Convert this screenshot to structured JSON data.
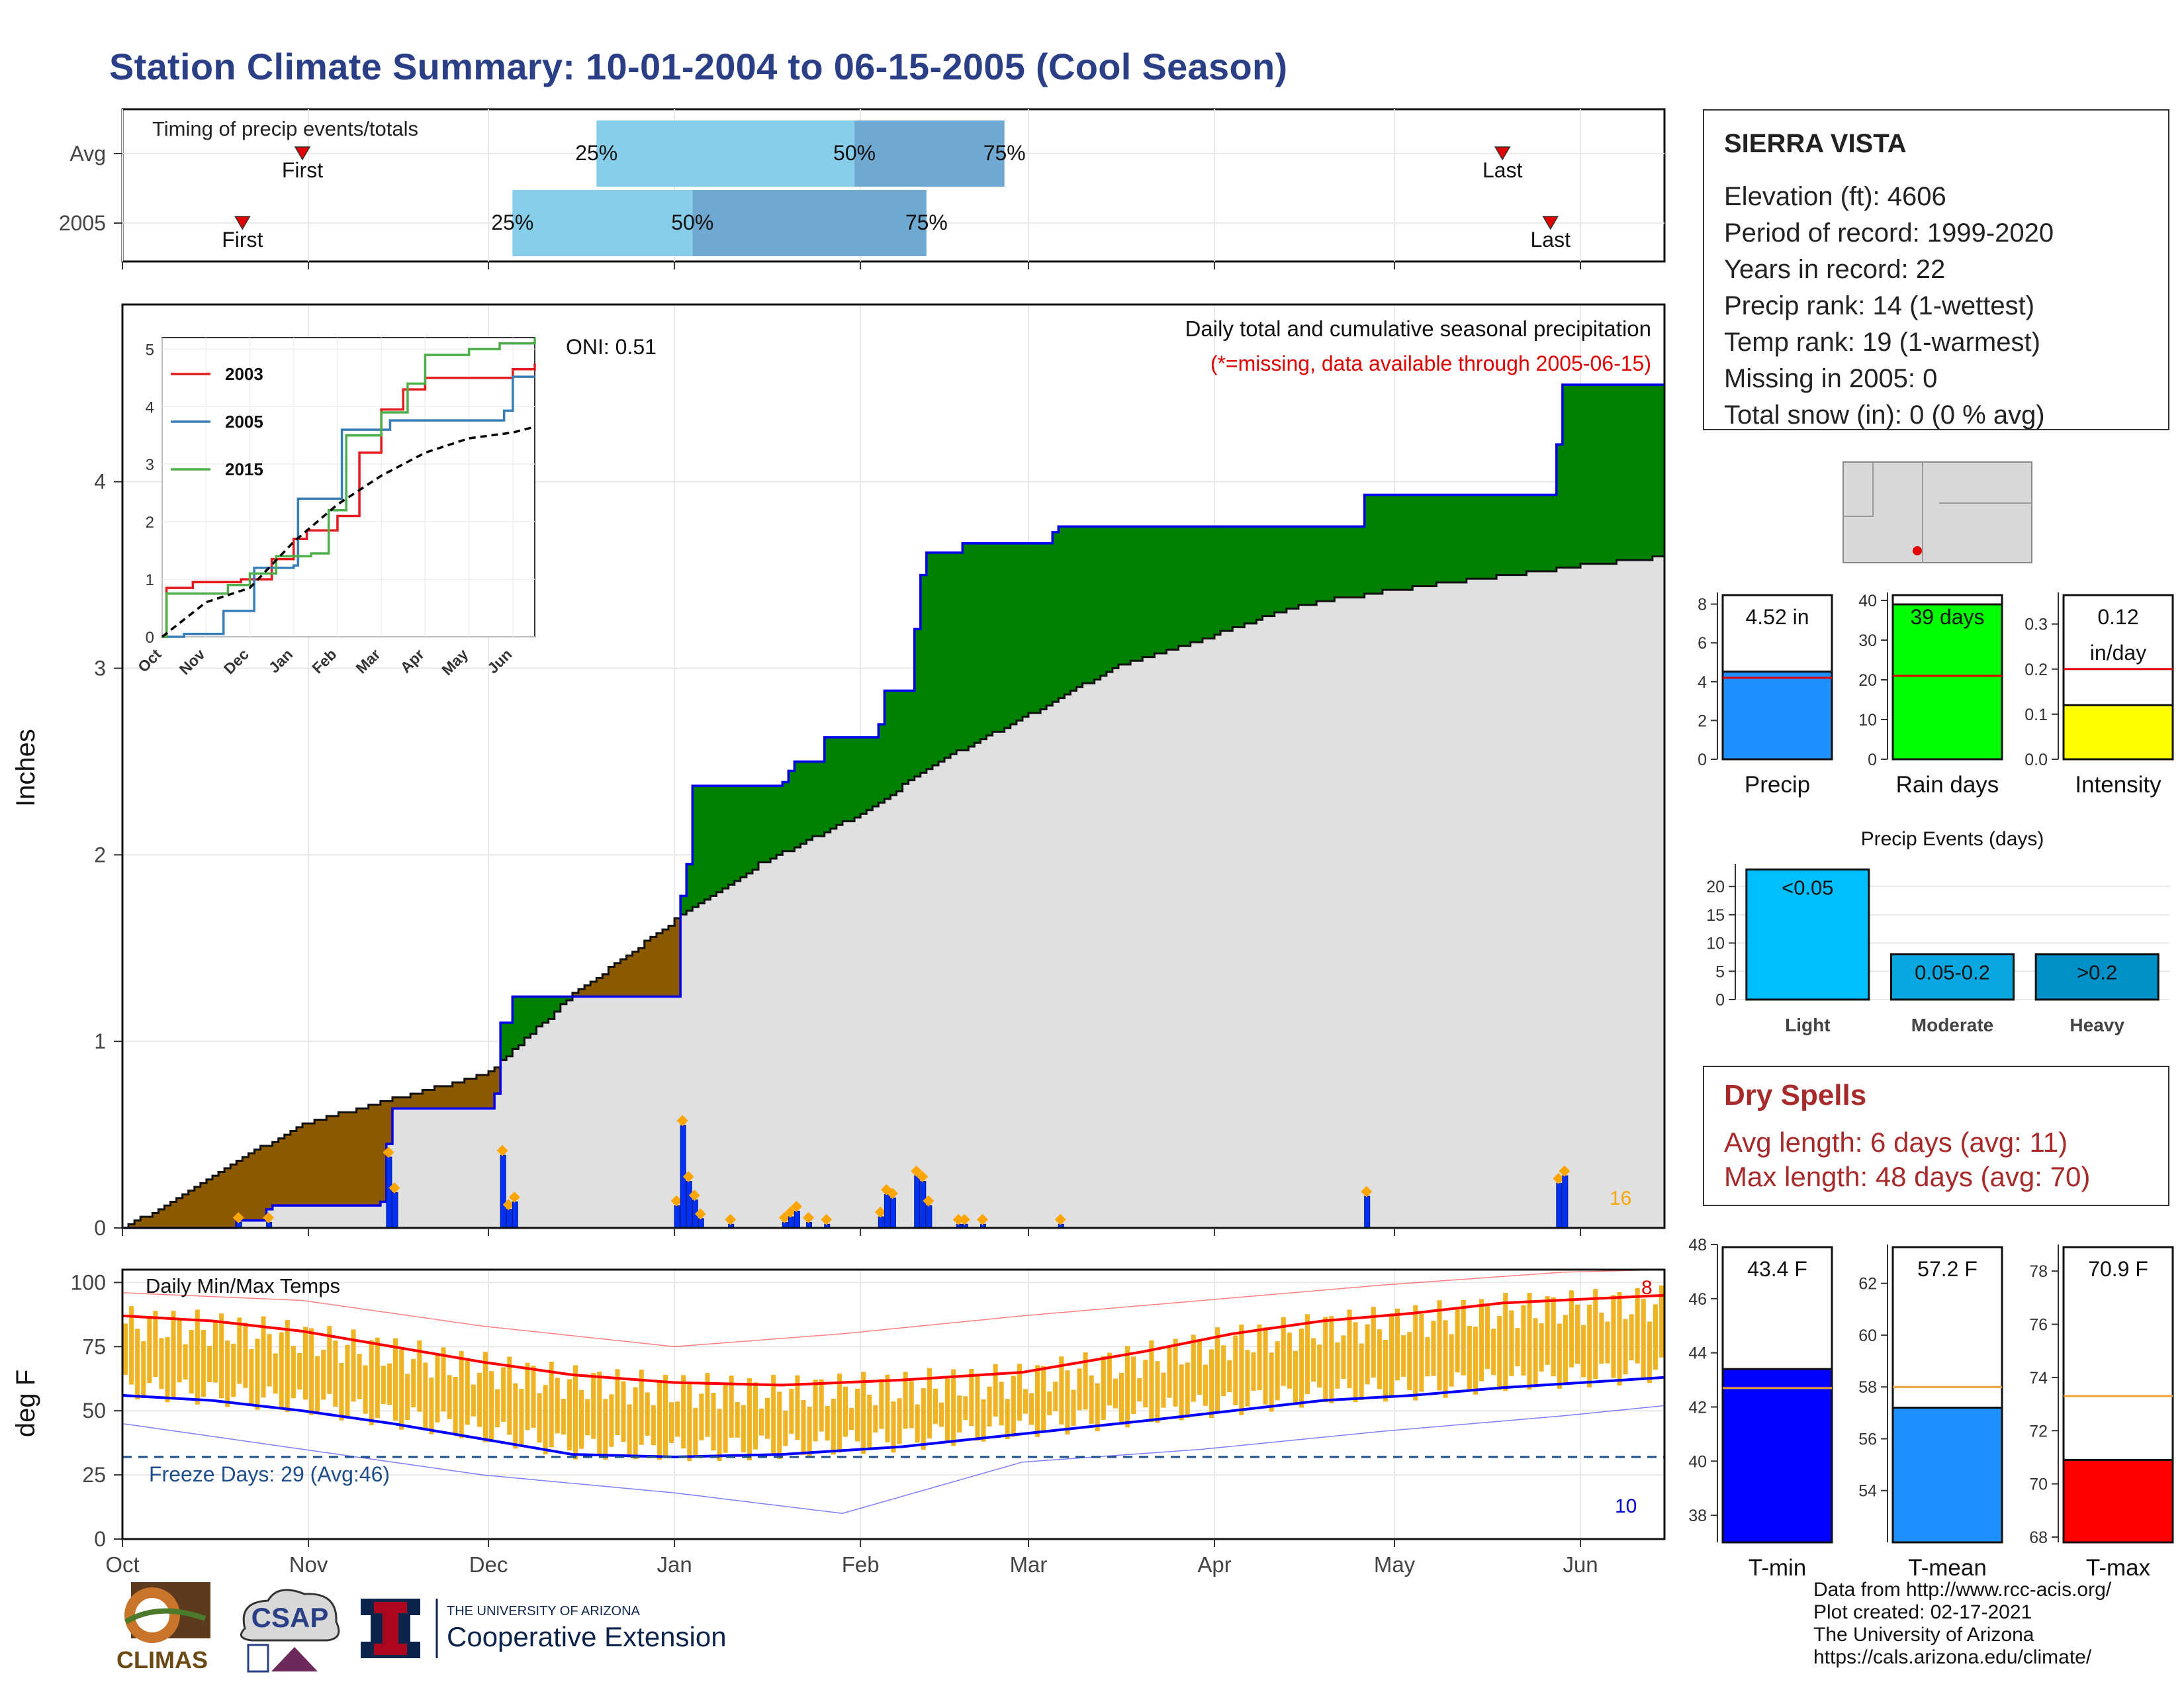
{
  "title": "Station Climate Summary: 10-01-2004 to 06-15-2005 (Cool Season)",
  "station": {
    "name": "SIERRA VISTA",
    "lines": [
      "Elevation (ft): 4606",
      "Period of record: 1999-2020",
      "Years in record: 22",
      "Precip rank: 14 (1-wettest)",
      "Temp rank: 19 (1-warmest)",
      "Missing in 2005: 0",
      "Total snow (in): 0 (0 % avg)"
    ]
  },
  "dry_spells": {
    "title": "Dry Spells",
    "avg_line": "Avg length: 6 days (avg: 11)",
    "max_line": "Max length: 48 days (avg: 70)"
  },
  "footer": [
    "Data from http://www.rcc-acis.org/",
    "Plot created: 02-17-2021",
    "The University of Arizona",
    "https://cals.arizona.edu/climate/"
  ],
  "logos": {
    "climas": "CLIMAS",
    "csap": "CSAP",
    "ua_small": "THE UNIVERSITY OF ARIZONA",
    "ua_big": "Cooperative Extension"
  },
  "colors": {
    "title": "#2b3f87",
    "above_avg": "#008000",
    "below_avg": "#8b5a00",
    "avg_fill": "#e0e0e0",
    "observed_line": "#0000ee",
    "daily_bar": "#0030ff",
    "marker": "#ffa500",
    "q_light": "#87ceeb",
    "q_dark": "#6fa8d0",
    "tmax": "#ff0000",
    "tmin": "#0000ff",
    "range_bar": "#f0b323"
  },
  "chart_data": [
    {
      "id": "timing",
      "type": "range",
      "title": "Timing of precip events/totals",
      "rows": [
        {
          "label": "Avg",
          "first": "2004-10-31",
          "p25": "2004-12-19",
          "p50": "2005-01-31",
          "p75": "2005-02-25",
          "last": "2005-05-19"
        },
        {
          "label": "2005",
          "first": "2004-10-21",
          "p25": "2004-12-05",
          "p50": "2005-01-04",
          "p75": "2005-02-12",
          "last": "2005-05-27"
        }
      ],
      "marker_labels": {
        "first": "First",
        "last": "Last",
        "p25": "25%",
        "p50": "50%",
        "p75": "75%"
      }
    },
    {
      "id": "cumulative_precip",
      "type": "area",
      "title": "Daily total and cumulative seasonal precipitation",
      "subtitle": "(*=missing, data available through 2005-06-15)",
      "annotation": "ONI: 0.51",
      "ylabel": "Inches",
      "ylim": [
        0,
        4.95
      ],
      "yticks": [
        0,
        1,
        2,
        3,
        4
      ],
      "x_months": [
        "Oct",
        "Nov",
        "Dec",
        "Jan",
        "Feb",
        "Mar",
        "Apr",
        "May",
        "Jun"
      ],
      "observed_cumulative": [
        {
          "x": "2004-10-01",
          "y": 0.0
        },
        {
          "x": "2004-10-20",
          "y": 0.04
        },
        {
          "x": "2004-10-25",
          "y": 0.1
        },
        {
          "x": "2004-10-26",
          "y": 0.12
        },
        {
          "x": "2004-11-13",
          "y": 0.14
        },
        {
          "x": "2004-11-14",
          "y": 0.45
        },
        {
          "x": "2004-11-15",
          "y": 0.64
        },
        {
          "x": "2004-11-26",
          "y": 0.64
        },
        {
          "x": "2004-12-02",
          "y": 0.72
        },
        {
          "x": "2004-12-03",
          "y": 1.1
        },
        {
          "x": "2004-12-05",
          "y": 1.24
        },
        {
          "x": "2005-01-01",
          "y": 1.24
        },
        {
          "x": "2005-01-02",
          "y": 1.78
        },
        {
          "x": "2005-01-03",
          "y": 1.95
        },
        {
          "x": "2005-01-04",
          "y": 2.37
        },
        {
          "x": "2005-01-10",
          "y": 2.37
        },
        {
          "x": "2005-01-19",
          "y": 2.39
        },
        {
          "x": "2005-01-20",
          "y": 2.45
        },
        {
          "x": "2005-01-21",
          "y": 2.5
        },
        {
          "x": "2005-01-26",
          "y": 2.63
        },
        {
          "x": "2005-02-04",
          "y": 2.7
        },
        {
          "x": "2005-02-05",
          "y": 2.88
        },
        {
          "x": "2005-02-10",
          "y": 3.21
        },
        {
          "x": "2005-02-11",
          "y": 3.5
        },
        {
          "x": "2005-02-12",
          "y": 3.62
        },
        {
          "x": "2005-02-17",
          "y": 3.62
        },
        {
          "x": "2005-02-18",
          "y": 3.67
        },
        {
          "x": "2005-03-05",
          "y": 3.73
        },
        {
          "x": "2005-03-06",
          "y": 3.76
        },
        {
          "x": "2005-04-25",
          "y": 3.76
        },
        {
          "x": "2005-04-26",
          "y": 3.93
        },
        {
          "x": "2005-05-27",
          "y": 3.93
        },
        {
          "x": "2005-05-28",
          "y": 4.2
        },
        {
          "x": "2005-05-29",
          "y": 4.52
        },
        {
          "x": "2005-06-15",
          "y": 4.52
        }
      ],
      "average_cumulative": [
        {
          "x": "2004-10-01",
          "y": 0.0
        },
        {
          "x": "2004-10-10",
          "y": 0.15
        },
        {
          "x": "2004-10-20",
          "y": 0.36
        },
        {
          "x": "2004-11-01",
          "y": 0.57
        },
        {
          "x": "2004-11-15",
          "y": 0.69
        },
        {
          "x": "2004-12-01",
          "y": 0.83
        },
        {
          "x": "2004-12-15",
          "y": 1.25
        },
        {
          "x": "2005-01-01",
          "y": 1.65
        },
        {
          "x": "2005-01-15",
          "y": 1.95
        },
        {
          "x": "2005-02-01",
          "y": 2.22
        },
        {
          "x": "2005-02-15",
          "y": 2.52
        },
        {
          "x": "2005-03-01",
          "y": 2.75
        },
        {
          "x": "2005-03-15",
          "y": 3.0
        },
        {
          "x": "2005-04-01",
          "y": 3.18
        },
        {
          "x": "2005-04-15",
          "y": 3.34
        },
        {
          "x": "2005-05-01",
          "y": 3.42
        },
        {
          "x": "2005-05-15",
          "y": 3.48
        },
        {
          "x": "2005-06-01",
          "y": 3.55
        },
        {
          "x": "2005-06-15",
          "y": 3.6
        }
      ],
      "daily_bars": [
        {
          "x": "2004-10-20",
          "y": 0.03
        },
        {
          "x": "2004-10-25",
          "y": 0.03
        },
        {
          "x": "2004-11-14",
          "y": 0.38
        },
        {
          "x": "2004-11-15",
          "y": 0.19
        },
        {
          "x": "2004-12-03",
          "y": 0.39
        },
        {
          "x": "2004-12-04",
          "y": 0.1
        },
        {
          "x": "2004-12-05",
          "y": 0.14
        },
        {
          "x": "2005-01-01",
          "y": 0.12
        },
        {
          "x": "2005-01-02",
          "y": 0.55
        },
        {
          "x": "2005-01-03",
          "y": 0.25
        },
        {
          "x": "2005-01-04",
          "y": 0.15
        },
        {
          "x": "2005-01-05",
          "y": 0.05
        },
        {
          "x": "2005-01-10",
          "y": 0.02
        },
        {
          "x": "2005-01-19",
          "y": 0.03
        },
        {
          "x": "2005-01-20",
          "y": 0.06
        },
        {
          "x": "2005-01-21",
          "y": 0.09
        },
        {
          "x": "2005-01-23",
          "y": 0.03
        },
        {
          "x": "2005-01-26",
          "y": 0.02
        },
        {
          "x": "2005-02-04",
          "y": 0.06
        },
        {
          "x": "2005-02-05",
          "y": 0.18
        },
        {
          "x": "2005-02-06",
          "y": 0.16
        },
        {
          "x": "2005-02-10",
          "y": 0.28
        },
        {
          "x": "2005-02-11",
          "y": 0.25
        },
        {
          "x": "2005-02-12",
          "y": 0.12
        },
        {
          "x": "2005-02-17",
          "y": 0.02
        },
        {
          "x": "2005-02-18",
          "y": 0.02
        },
        {
          "x": "2005-02-21",
          "y": 0.02
        },
        {
          "x": "2005-03-06",
          "y": 0.02
        },
        {
          "x": "2005-04-26",
          "y": 0.17
        },
        {
          "x": "2005-05-28",
          "y": 0.24
        },
        {
          "x": "2005-05-29",
          "y": 0.28
        }
      ],
      "count_label": "16"
    },
    {
      "id": "inset_cumulative",
      "type": "line",
      "x_months": [
        "Oct",
        "Nov",
        "Dec",
        "Jan",
        "Feb",
        "Mar",
        "Apr",
        "May",
        "Jun"
      ],
      "ylim": [
        0,
        5.2
      ],
      "yticks": [
        0,
        1,
        2,
        3,
        4,
        5
      ],
      "series": [
        {
          "name": "2003",
          "color": "#e41a1c",
          "points": [
            [
              0,
              0
            ],
            [
              0.1,
              0.85
            ],
            [
              0.7,
              0.95
            ],
            [
              1.8,
              1.0
            ],
            [
              2.5,
              1.35
            ],
            [
              3,
              1.7
            ],
            [
              3.3,
              1.85
            ],
            [
              4,
              2.1
            ],
            [
              4.5,
              3.2
            ],
            [
              5,
              3.95
            ],
            [
              5.5,
              4.3
            ],
            [
              6,
              4.5
            ],
            [
              7.5,
              4.5
            ],
            [
              8,
              4.65
            ],
            [
              8.5,
              4.75
            ]
          ]
        },
        {
          "name": "2005",
          "color": "#377eb8",
          "points": [
            [
              0,
              0
            ],
            [
              0.5,
              0.05
            ],
            [
              1.4,
              0.45
            ],
            [
              2.1,
              1.2
            ],
            [
              3,
              1.24
            ],
            [
              3.1,
              2.4
            ],
            [
              4.1,
              3.6
            ],
            [
              5.2,
              3.76
            ],
            [
              6.8,
              3.76
            ],
            [
              7.8,
              3.93
            ],
            [
              8.0,
              4.52
            ],
            [
              8.5,
              4.52
            ]
          ]
        },
        {
          "name": "2015",
          "color": "#4daf4a",
          "points": [
            [
              0,
              0
            ],
            [
              0.1,
              0.75
            ],
            [
              1.5,
              0.9
            ],
            [
              2,
              1.1
            ],
            [
              2.6,
              1.4
            ],
            [
              3.4,
              1.45
            ],
            [
              3.8,
              2.2
            ],
            [
              4.2,
              3.5
            ],
            [
              5,
              3.9
            ],
            [
              5.6,
              4.4
            ],
            [
              6,
              4.9
            ],
            [
              7,
              5.0
            ],
            [
              7.7,
              5.1
            ],
            [
              8.5,
              5.2
            ]
          ]
        },
        {
          "name": "",
          "color": "#000000",
          "dashed": true,
          "points": [
            [
              0,
              0
            ],
            [
              1,
              0.6
            ],
            [
              2,
              0.85
            ],
            [
              3,
              1.65
            ],
            [
              4,
              2.3
            ],
            [
              5,
              2.8
            ],
            [
              6,
              3.2
            ],
            [
              7,
              3.45
            ],
            [
              8,
              3.55
            ],
            [
              8.5,
              3.65
            ]
          ]
        }
      ]
    },
    {
      "id": "temps",
      "type": "line",
      "title": "Daily Min/Max Temps",
      "ylabel": "deg F",
      "ylim": [
        0,
        105
      ],
      "yticks": [
        0,
        25,
        50,
        75,
        100
      ],
      "freeze_line": 32,
      "freeze_label": "Freeze Days: 29 (Avg:46)",
      "x_months": [
        "Oct",
        "Nov",
        "Dec",
        "Jan",
        "Feb",
        "Mar",
        "Apr",
        "May",
        "Jun"
      ],
      "avg_max": [
        [
          0,
          87
        ],
        [
          15,
          85
        ],
        [
          30,
          81
        ],
        [
          45,
          75
        ],
        [
          60,
          69
        ],
        [
          75,
          64
        ],
        [
          92,
          61
        ],
        [
          110,
          60
        ],
        [
          130,
          62
        ],
        [
          150,
          65
        ],
        [
          170,
          73
        ],
        [
          185,
          80
        ],
        [
          200,
          85
        ],
        [
          215,
          88
        ],
        [
          230,
          92
        ],
        [
          257,
          95
        ]
      ],
      "avg_min": [
        [
          0,
          56
        ],
        [
          15,
          54
        ],
        [
          30,
          50
        ],
        [
          45,
          45
        ],
        [
          60,
          39
        ],
        [
          75,
          33
        ],
        [
          92,
          32
        ],
        [
          110,
          33
        ],
        [
          130,
          36
        ],
        [
          150,
          41
        ],
        [
          170,
          46
        ],
        [
          185,
          50
        ],
        [
          200,
          54
        ],
        [
          215,
          56
        ],
        [
          230,
          59
        ],
        [
          257,
          63
        ]
      ],
      "record_max": [
        [
          0,
          96
        ],
        [
          30,
          93
        ],
        [
          60,
          83
        ],
        [
          92,
          75
        ],
        [
          120,
          80
        ],
        [
          150,
          87
        ],
        [
          180,
          93
        ],
        [
          210,
          99
        ],
        [
          240,
          104
        ],
        [
          257,
          105
        ]
      ],
      "record_min": [
        [
          0,
          45
        ],
        [
          30,
          35
        ],
        [
          60,
          25
        ],
        [
          92,
          18
        ],
        [
          120,
          10
        ],
        [
          135,
          20
        ],
        [
          150,
          30
        ],
        [
          180,
          35
        ],
        [
          210,
          42
        ],
        [
          240,
          48
        ],
        [
          257,
          52
        ]
      ],
      "max_count_label": "8",
      "min_count_label": "10"
    },
    {
      "id": "summary_precip",
      "type": "bar",
      "categories": [
        "Precip",
        "Rain days",
        "Intensity"
      ],
      "values": [
        4.52,
        39,
        0.12
      ],
      "averages": [
        4.2,
        21,
        0.2
      ],
      "value_labels": [
        "4.52 in",
        "39 days",
        "0.12 in/day"
      ],
      "ylims": [
        [
          0,
          8.6
        ],
        [
          0,
          42
        ],
        [
          0,
          0.37
        ]
      ],
      "yticks": [
        [
          0,
          2,
          4,
          6,
          8
        ],
        [
          0,
          10,
          20,
          30,
          40
        ],
        [
          0.0,
          0.1,
          0.2,
          0.3
        ]
      ]
    },
    {
      "id": "precip_events",
      "type": "bar",
      "title": "Precip Events (days)",
      "categories": [
        "Light",
        "Moderate",
        "Heavy"
      ],
      "bar_labels": [
        "<0.05",
        "0.05-0.2",
        ">0.2"
      ],
      "values": [
        23,
        8,
        8
      ],
      "ylim": [
        0,
        24
      ],
      "yticks": [
        0,
        5,
        10,
        15,
        20
      ]
    },
    {
      "id": "summary_temps",
      "type": "bar",
      "categories": [
        "T-min",
        "T-mean",
        "T-max"
      ],
      "values": [
        43.4,
        57.2,
        70.9
      ],
      "averages": [
        42.7,
        58.0,
        73.3
      ],
      "value_labels": [
        "43.4 F",
        "57.2 F",
        "70.9 F"
      ],
      "ylims": [
        [
          37,
          48
        ],
        [
          52,
          63.5
        ],
        [
          67.8,
          79
        ]
      ],
      "yticks": [
        [
          38,
          40,
          42,
          44,
          46,
          48
        ],
        [
          54,
          56,
          58,
          60,
          62
        ],
        [
          68,
          70,
          72,
          74,
          76,
          78
        ]
      ]
    }
  ]
}
